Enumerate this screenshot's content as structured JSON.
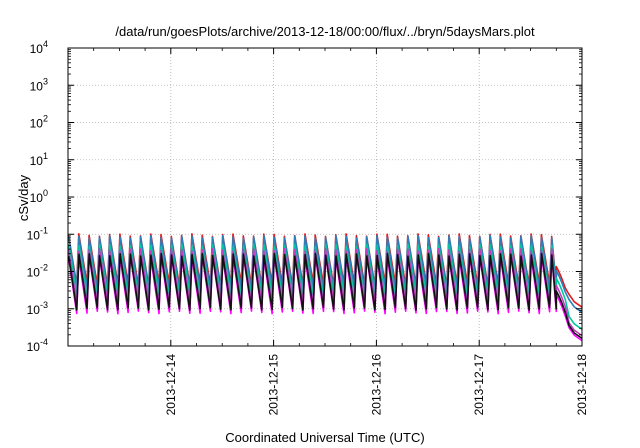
{
  "chart_data": {
    "type": "line",
    "title": "/data/run/goesPlots/archive/2013-12-18/00:00/flux/../bryn/5daysMars.plot",
    "xlabel": "Coordinated Universal Time (UTC)",
    "ylabel": "cSv/day",
    "x_range": [
      "2013-12-13 00:00",
      "2013-12-18 00:00"
    ],
    "x_ticks": [
      "2013-12-14",
      "2013-12-15",
      "2013-12-16",
      "2013-12-17",
      "2013-12-18"
    ],
    "y_scale": "log",
    "ylim": [
      0.0001,
      10000
    ],
    "y_ticks": [
      {
        "base": "10",
        "exp": "-4"
      },
      {
        "base": "10",
        "exp": "-3"
      },
      {
        "base": "10",
        "exp": "-2"
      },
      {
        "base": "10",
        "exp": "-1"
      },
      {
        "base": "10",
        "exp": "0"
      },
      {
        "base": "10",
        "exp": "1"
      },
      {
        "base": "10",
        "exp": "2"
      },
      {
        "base": "10",
        "exp": "3"
      },
      {
        "base": "10",
        "exp": "4"
      }
    ],
    "grid": true,
    "legend": "none",
    "cycle_hours": 2.4,
    "decay_start": "2013-12-17 18:00",
    "series": [
      {
        "color": "#e41a1c",
        "peak": 0.095,
        "trough": 0.0045,
        "end": 0.0011
      },
      {
        "color": "#2c7fb8",
        "peak": 0.085,
        "trough": 0.0035,
        "end": 0.0008
      },
      {
        "color": "#00c8a0",
        "peak": 0.05,
        "trough": 0.0022,
        "end": 0.00028
      },
      {
        "color": "#c040c0",
        "peak": 0.038,
        "trough": 0.0014,
        "end": 0.00019
      },
      {
        "color": "#ff00ff",
        "peak": 0.025,
        "trough": 0.0008,
        "end": 0.00014
      },
      {
        "color": "#111111",
        "peak": 0.028,
        "trough": 0.001,
        "end": 0.00016
      }
    ]
  }
}
